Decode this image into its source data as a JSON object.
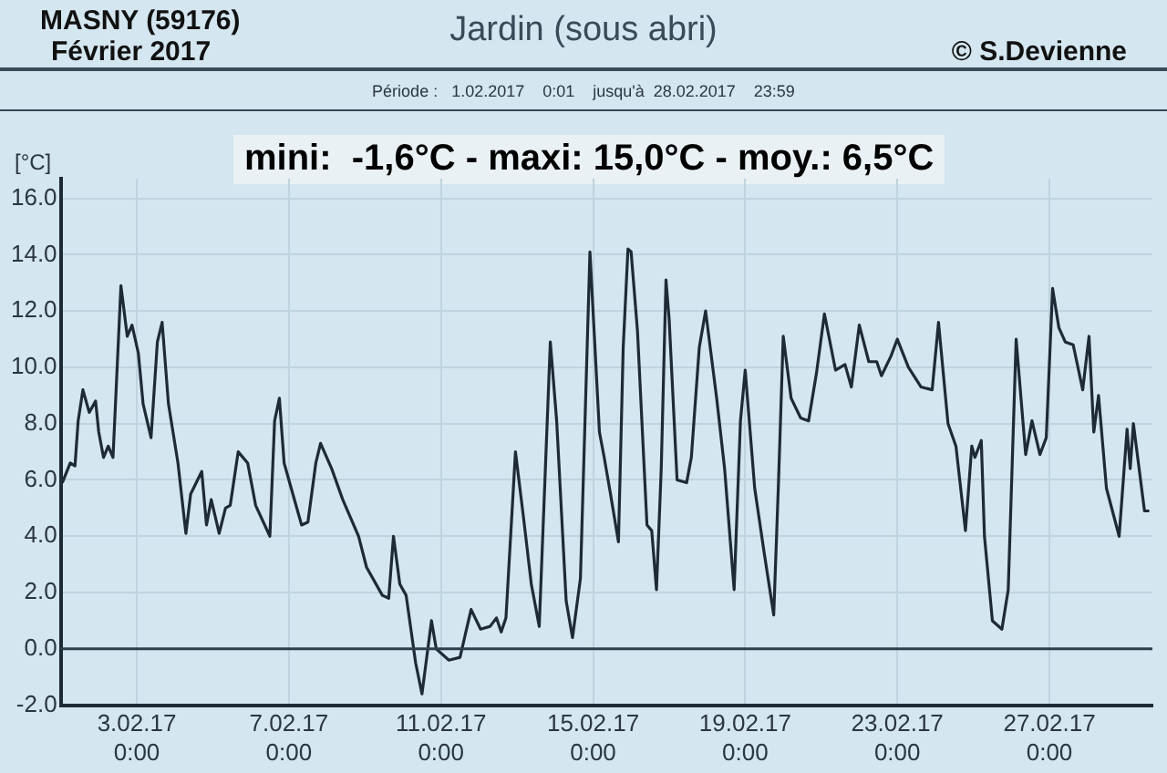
{
  "chart_data": {
    "type": "line",
    "title": "Jardin (sous abri)",
    "subtitle": "Période :   1.02.2017    0:01    jusqu'à  28.02.2017    23:59",
    "ylabel": "[°C]",
    "annotations": [
      "MASNY (59176)",
      "Février 2017",
      "© S.Devienne",
      "mini:  -1,6°C - maxi: 15,0°C - moy.: 6,5°C"
    ],
    "xlim": [
      "2017-02-01T00:00",
      "2017-03-01T17:00"
    ],
    "xticks": [
      {
        "value": "2017-02-03T00:00",
        "label": "3.02.17\n0:00"
      },
      {
        "value": "2017-02-07T00:00",
        "label": "7.02.17\n0:00"
      },
      {
        "value": "2017-02-11T00:00",
        "label": "11.02.17\n0:00"
      },
      {
        "value": "2017-02-15T00:00",
        "label": "15.02.17\n0:00"
      },
      {
        "value": "2017-02-19T00:00",
        "label": "19.02.17\n0:00"
      },
      {
        "value": "2017-02-23T00:00",
        "label": "23.02.17\n0:00"
      },
      {
        "value": "2017-02-27T00:00",
        "label": "27.02.17\n0:00"
      }
    ],
    "ylim": [
      -2,
      16.7
    ],
    "yticks": [
      {
        "value": -2,
        "label": "-2.0"
      },
      {
        "value": 0,
        "label": "0.0"
      },
      {
        "value": 2,
        "label": "2.0"
      },
      {
        "value": 4,
        "label": "4.0"
      },
      {
        "value": 6,
        "label": "6.0"
      },
      {
        "value": 8,
        "label": "8.0"
      },
      {
        "value": 10,
        "label": "10.0"
      },
      {
        "value": 12,
        "label": "12.0"
      },
      {
        "value": 14,
        "label": "14.0"
      },
      {
        "value": 16,
        "label": "16.0"
      }
    ],
    "grid": true,
    "legend": false,
    "marker": "none",
    "line_style": "solid",
    "ref_lines": [
      {
        "axis": "y",
        "value": 0,
        "color": "#2e3f4c"
      }
    ],
    "series": [
      {
        "color": "#1e2a35",
        "x": [
          "2017-02-01T01:00",
          "2017-02-01T06:00",
          "2017-02-01T09:00",
          "2017-02-01T11:00",
          "2017-02-01T14:00",
          "2017-02-01T18:00",
          "2017-02-01T22:00",
          "2017-02-02T00:00",
          "2017-02-02T03:00",
          "2017-02-02T06:00",
          "2017-02-02T09:00",
          "2017-02-02T14:00",
          "2017-02-02T18:00",
          "2017-02-02T21:00",
          "2017-02-03T01:00",
          "2017-02-03T04:00",
          "2017-02-03T09:00",
          "2017-02-03T13:00",
          "2017-02-03T16:00",
          "2017-02-03T20:00",
          "2017-02-04T02:00",
          "2017-02-04T07:00",
          "2017-02-04T10:00",
          "2017-02-04T17:00",
          "2017-02-04T20:00",
          "2017-02-04T23:00",
          "2017-02-05T04:00",
          "2017-02-05T08:00",
          "2017-02-05T11:00",
          "2017-02-05T16:00",
          "2017-02-05T22:00",
          "2017-02-06T03:00",
          "2017-02-06T12:00",
          "2017-02-06T15:00",
          "2017-02-06T18:00",
          "2017-02-06T21:00",
          "2017-02-07T04:00",
          "2017-02-07T08:00",
          "2017-02-07T12:00",
          "2017-02-07T17:00",
          "2017-02-07T20:00",
          "2017-02-08T03:00",
          "2017-02-08T10:00",
          "2017-02-08T20:00",
          "2017-02-09T01:00",
          "2017-02-09T11:00",
          "2017-02-09T15:00",
          "2017-02-09T18:00",
          "2017-02-09T22:00",
          "2017-02-10T02:00",
          "2017-02-10T08:00",
          "2017-02-10T12:00",
          "2017-02-10T18:00",
          "2017-02-10T21:00",
          "2017-02-11T05:00",
          "2017-02-11T12:00",
          "2017-02-11T19:00",
          "2017-02-12T01:00",
          "2017-02-12T07:00",
          "2017-02-12T11:00",
          "2017-02-12T14:00",
          "2017-02-12T17:00",
          "2017-02-12T23:00",
          "2017-02-13T04:00",
          "2017-02-13T09:00",
          "2017-02-13T14:00",
          "2017-02-13T21:00",
          "2017-02-14T01:00",
          "2017-02-14T07:00",
          "2017-02-14T11:00",
          "2017-02-14T16:00",
          "2017-02-14T22:00",
          "2017-02-15T04:00",
          "2017-02-15T07:00",
          "2017-02-15T11:00",
          "2017-02-15T16:00",
          "2017-02-15T19:00",
          "2017-02-15T22:00",
          "2017-02-16T00:00",
          "2017-02-16T04:00",
          "2017-02-16T10:00",
          "2017-02-16T13:00",
          "2017-02-16T16:00",
          "2017-02-16T19:00",
          "2017-02-16T22:00",
          "2017-02-17T00:00",
          "2017-02-17T05:00",
          "2017-02-17T11:00",
          "2017-02-17T14:00",
          "2017-02-17T19:00",
          "2017-02-17T23:00",
          "2017-02-18T06:00",
          "2017-02-18T11:00",
          "2017-02-18T17:00",
          "2017-02-18T21:00",
          "2017-02-19T00:00",
          "2017-02-19T06:00",
          "2017-02-19T12:00",
          "2017-02-19T18:00",
          "2017-02-19T21:00",
          "2017-02-20T00:00",
          "2017-02-20T05:00",
          "2017-02-20T11:00",
          "2017-02-20T16:00",
          "2017-02-20T21:00",
          "2017-02-21T02:00",
          "2017-02-21T09:00",
          "2017-02-21T15:00",
          "2017-02-21T19:00",
          "2017-02-22T00:00",
          "2017-02-22T06:00",
          "2017-02-22T11:00",
          "2017-02-22T14:00",
          "2017-02-22T20:00",
          "2017-02-23T00:00",
          "2017-02-23T07:00",
          "2017-02-23T15:00",
          "2017-02-23T22:00",
          "2017-02-24T02:00",
          "2017-02-24T08:00",
          "2017-02-24T13:00",
          "2017-02-24T19:00",
          "2017-02-24T23:00",
          "2017-02-25T01:00",
          "2017-02-25T05:00",
          "2017-02-25T07:00",
          "2017-02-25T12:00",
          "2017-02-25T18:00",
          "2017-02-25T22:00",
          "2017-02-26T03:00",
          "2017-02-26T09:00",
          "2017-02-26T13:00",
          "2017-02-26T18:00",
          "2017-02-26T22:00",
          "2017-02-27T02:00",
          "2017-02-27T06:00",
          "2017-02-27T10:00",
          "2017-02-27T15:00",
          "2017-02-27T21:00",
          "2017-02-28T01:00",
          "2017-02-28T04:00",
          "2017-02-28T07:00",
          "2017-02-28T12:00",
          "2017-02-28T20:00",
          "2017-03-01T01:00",
          "2017-03-01T03:00",
          "2017-03-01T05:00",
          "2017-03-01T12:00",
          "2017-03-01T15:00"
        ],
        "values": [
          5.9,
          6.6,
          6.5,
          8.1,
          9.2,
          8.4,
          8.8,
          7.7,
          6.8,
          7.2,
          6.8,
          12.9,
          11.1,
          11.5,
          10.5,
          8.7,
          7.5,
          10.9,
          11.6,
          8.7,
          6.6,
          4.1,
          5.5,
          6.3,
          4.4,
          5.3,
          4.1,
          5.0,
          5.1,
          7.0,
          6.6,
          5.1,
          4.0,
          8.1,
          8.9,
          6.6,
          5.2,
          4.4,
          4.5,
          6.6,
          7.3,
          6.4,
          5.3,
          4.0,
          2.9,
          1.9,
          1.8,
          4.0,
          2.3,
          1.9,
          -0.5,
          -1.6,
          1.0,
          0.0,
          -0.4,
          -0.3,
          1.4,
          0.7,
          0.8,
          1.1,
          0.6,
          1.1,
          7.0,
          4.7,
          2.3,
          0.8,
          10.9,
          8.1,
          1.7,
          0.4,
          2.5,
          14.1,
          7.7,
          6.8,
          5.5,
          3.8,
          10.7,
          14.2,
          14.1,
          11.3,
          4.4,
          4.2,
          2.1,
          6.4,
          13.1,
          11.7,
          6.0,
          5.9,
          6.8,
          10.7,
          12.0,
          8.9,
          6.4,
          2.1,
          8.1,
          9.9,
          5.7,
          3.4,
          1.2,
          5.9,
          11.1,
          8.9,
          8.2,
          8.1,
          9.8,
          11.9,
          9.9,
          10.1,
          9.3,
          11.5,
          10.2,
          10.2,
          9.7,
          10.4,
          11.0,
          10.0,
          9.3,
          9.2,
          11.6,
          8.0,
          7.2,
          4.2,
          7.2,
          6.8,
          7.4,
          4.0,
          1.0,
          0.7,
          2.1,
          11.0,
          6.9,
          8.1,
          6.9,
          7.5,
          12.8,
          11.4,
          10.9,
          10.8,
          9.2,
          11.1,
          7.7,
          9.0,
          5.7,
          4.0,
          7.8,
          6.4,
          8.0,
          4.9,
          4.9
        ]
      }
    ]
  }
}
